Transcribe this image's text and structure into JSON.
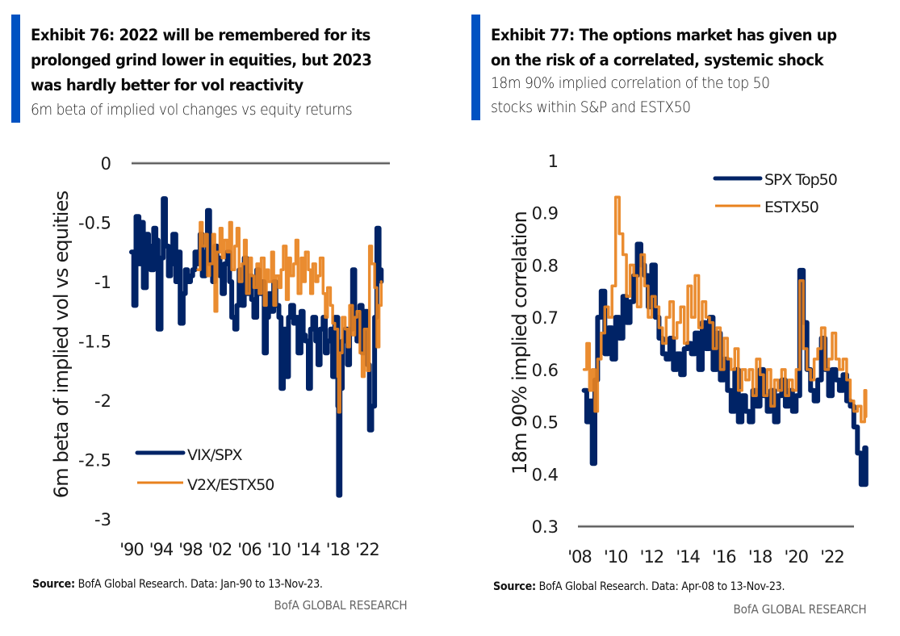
{
  "exhibit76": {
    "title_lines": [
      "Exhibit 76: 2022 will be remembered  for its",
      "prolonged grind lower in equities, but 2023",
      "was hardly better for vol reactivity"
    ],
    "subtitle": "6m beta of implied vol changes vs equity returns",
    "source_label": "Source:",
    "source_text": "BofA Global Research. Data: Jan-90 to 13-Nov-23.",
    "brand": "BofA GLOBAL RESEARCH"
  },
  "exhibit77": {
    "title_lines": [
      "Exhibit 77: The options market has given up",
      "on the risk of a correlated, systemic shock"
    ],
    "subtitle_lines": [
      "18m 90% implied correlation  of the top 50",
      "stocks within  S&P and ESTX50"
    ],
    "source_label": "Source:",
    "source_text": "BofA Global Research.  Data: Apr-08 to 13-Nov-23.",
    "brand": "BofA GLOBAL RESEARCH"
  },
  "colors": {
    "accent_bar": "#0052c2",
    "navy": "#002366",
    "orange": "#e8821e",
    "axis": "#555555"
  },
  "chart_data": [
    {
      "type": "line",
      "title": "6m beta of implied vol changes vs equity returns",
      "xlabel": "",
      "ylabel": "6m beta of implied vol vs equities",
      "ylim": [
        -3,
        0
      ],
      "xlim": [
        1990.0,
        2023.9
      ],
      "yticks": [
        0,
        -0.5,
        -1,
        -1.5,
        -2,
        -2.5,
        -3
      ],
      "ytick_labels": [
        "0",
        "-0.5",
        "-1",
        "-1.5",
        "-2",
        "-2.5",
        "-3"
      ],
      "xticks": [
        1990,
        1994,
        1998,
        2002,
        2006,
        2010,
        2014,
        2018,
        2022
      ],
      "xtick_labels": [
        "'90",
        "'94",
        "'98",
        "'02",
        "'06",
        "'10",
        "'14",
        "'18",
        "'22"
      ],
      "grid": false,
      "legend": "bottom-left",
      "series": [
        {
          "name": "VIX/SPX",
          "color": "#002366",
          "x": [
            1990.0,
            1990.3,
            1990.6,
            1991.0,
            1991.3,
            1991.6,
            1992.0,
            1992.3,
            1992.6,
            1993.0,
            1993.3,
            1993.6,
            1994.0,
            1994.3,
            1994.6,
            1995.0,
            1995.3,
            1995.6,
            1996.0,
            1996.3,
            1996.6,
            1997.0,
            1997.3,
            1997.6,
            1998.0,
            1998.3,
            1998.6,
            1999.0,
            1999.3,
            1999.6,
            2000.0,
            2000.3,
            2000.6,
            2001.0,
            2001.3,
            2001.6,
            2002.0,
            2002.3,
            2002.6,
            2003.0,
            2003.3,
            2003.6,
            2004.0,
            2004.3,
            2004.6,
            2005.0,
            2005.3,
            2005.6,
            2006.0,
            2006.3,
            2006.6,
            2007.0,
            2007.3,
            2007.6,
            2008.0,
            2008.3,
            2008.6,
            2009.0,
            2009.3,
            2009.6,
            2010.0,
            2010.3,
            2010.6,
            2011.0,
            2011.3,
            2011.6,
            2012.0,
            2012.3,
            2012.6,
            2013.0,
            2013.3,
            2013.6,
            2014.0,
            2014.3,
            2014.6,
            2015.0,
            2015.3,
            2015.6,
            2016.0,
            2016.3,
            2016.6,
            2017.0,
            2017.3,
            2017.6,
            2018.0,
            2018.1,
            2018.3,
            2018.6,
            2019.0,
            2019.3,
            2019.6,
            2020.0,
            2020.3,
            2020.6,
            2021.0,
            2021.3,
            2021.6,
            2022.0,
            2022.3,
            2022.6,
            2023.0,
            2023.3,
            2023.6,
            2023.9
          ],
          "y": [
            -0.75,
            -1.2,
            -0.45,
            -0.85,
            -0.5,
            -1.05,
            -0.6,
            -0.7,
            -0.9,
            -0.55,
            -0.65,
            -1.4,
            -0.8,
            -0.3,
            -0.7,
            -0.95,
            -0.85,
            -0.6,
            -1.0,
            -0.75,
            -1.35,
            -1.1,
            -0.9,
            -1.0,
            -0.95,
            -0.9,
            -0.75,
            -0.85,
            -0.6,
            -0.95,
            -0.75,
            -0.4,
            -0.85,
            -1.0,
            -0.7,
            -0.8,
            -0.95,
            -1.1,
            -0.85,
            -0.75,
            -1.0,
            -1.3,
            -1.4,
            -1.2,
            -0.9,
            -1.2,
            -0.8,
            -1.1,
            -0.95,
            -1.15,
            -1.3,
            -0.9,
            -1.1,
            -1.0,
            -1.6,
            -1.3,
            -1.1,
            -1.25,
            -1.0,
            -1.2,
            -1.3,
            -1.9,
            -1.4,
            -1.8,
            -1.3,
            -1.2,
            -1.35,
            -1.3,
            -1.6,
            -1.25,
            -1.45,
            -1.5,
            -1.9,
            -1.4,
            -1.3,
            -1.5,
            -1.7,
            -1.4,
            -1.3,
            -1.6,
            -1.5,
            -1.4,
            -1.8,
            -1.3,
            -2.05,
            -2.8,
            -1.9,
            -1.5,
            -1.4,
            -1.7,
            -1.4,
            -0.9,
            -1.3,
            -1.5,
            -1.2,
            -1.6,
            -1.25,
            -1.7,
            -2.25,
            -2.05,
            -1.3,
            -0.55,
            -0.9,
            -1.0
          ]
        },
        {
          "name": "V2X/ESTX50",
          "color": "#e8821e",
          "x": [
            1999.0,
            1999.3,
            1999.6,
            2000.0,
            2000.3,
            2000.6,
            2001.0,
            2001.3,
            2001.6,
            2002.0,
            2002.3,
            2002.6,
            2003.0,
            2003.3,
            2003.6,
            2004.0,
            2004.3,
            2004.6,
            2005.0,
            2005.3,
            2005.6,
            2006.0,
            2006.3,
            2006.6,
            2007.0,
            2007.3,
            2007.6,
            2008.0,
            2008.3,
            2008.6,
            2009.0,
            2009.3,
            2009.6,
            2010.0,
            2010.3,
            2010.6,
            2011.0,
            2011.3,
            2011.6,
            2012.0,
            2012.3,
            2012.6,
            2013.0,
            2013.3,
            2013.6,
            2014.0,
            2014.3,
            2014.6,
            2015.0,
            2015.3,
            2015.6,
            2016.0,
            2016.3,
            2016.6,
            2017.0,
            2017.3,
            2017.6,
            2018.0,
            2018.1,
            2018.3,
            2018.6,
            2019.0,
            2019.3,
            2019.6,
            2020.0,
            2020.3,
            2020.6,
            2021.0,
            2021.3,
            2021.6,
            2022.0,
            2022.3,
            2022.6,
            2023.0,
            2023.3,
            2023.6,
            2023.9
          ],
          "y": [
            -0.9,
            -0.5,
            -0.7,
            -0.6,
            -0.95,
            -0.85,
            -0.6,
            -1.25,
            -0.75,
            -0.55,
            -0.8,
            -0.65,
            -0.75,
            -0.5,
            -0.9,
            -0.7,
            -0.55,
            -1.0,
            -0.85,
            -0.65,
            -1.1,
            -0.8,
            -0.95,
            -1.05,
            -0.85,
            -1.1,
            -0.8,
            -1.2,
            -0.9,
            -1.0,
            -0.75,
            -1.2,
            -0.95,
            -1.05,
            -0.9,
            -0.7,
            -1.15,
            -0.8,
            -0.95,
            -0.85,
            -0.65,
            -1.1,
            -0.8,
            -1.0,
            -0.75,
            -0.9,
            -1.1,
            -0.85,
            -1.0,
            -0.95,
            -0.8,
            -1.1,
            -1.3,
            -1.05,
            -1.2,
            -1.35,
            -1.4,
            -1.8,
            -2.1,
            -1.6,
            -1.3,
            -1.4,
            -1.55,
            -1.2,
            -1.45,
            -1.3,
            -1.25,
            -1.6,
            -1.8,
            -1.4,
            -1.75,
            -0.7,
            -0.85,
            -1.05,
            -1.55,
            -1.2,
            -1.0
          ]
        }
      ]
    },
    {
      "type": "line",
      "title": "18m 90% implied correlation of the top 50 stocks within S&P and ESTX50",
      "xlabel": "",
      "ylabel": "18m 90% implied correlation",
      "ylim": [
        0.3,
        1
      ],
      "xlim": [
        2007.9,
        2023.9
      ],
      "yticks": [
        1,
        0.9,
        0.8,
        0.7,
        0.6,
        0.5,
        0.4,
        0.3
      ],
      "ytick_labels": [
        "1",
        "0.9",
        "0.8",
        "0.7",
        "0.6",
        "0.5",
        "0.4",
        "0.3"
      ],
      "xticks": [
        2008,
        2010,
        2012,
        2014,
        2016,
        2018,
        2020,
        2022
      ],
      "xtick_labels": [
        "'08",
        "'10",
        "'12",
        "'14",
        "'16",
        "'18",
        "'20",
        "'22"
      ],
      "grid": false,
      "legend": "top-right",
      "series": [
        {
          "name": "SPX Top50",
          "color": "#002366",
          "x": [
            2008.25,
            2008.4,
            2008.55,
            2008.7,
            2008.85,
            2009.0,
            2009.2,
            2009.4,
            2009.6,
            2009.8,
            2010.0,
            2010.2,
            2010.4,
            2010.6,
            2010.8,
            2011.0,
            2011.2,
            2011.4,
            2011.6,
            2011.8,
            2012.0,
            2012.2,
            2012.4,
            2012.6,
            2012.8,
            2013.0,
            2013.2,
            2013.4,
            2013.6,
            2013.8,
            2014.0,
            2014.2,
            2014.4,
            2014.6,
            2014.8,
            2015.0,
            2015.2,
            2015.4,
            2015.6,
            2015.8,
            2016.0,
            2016.2,
            2016.4,
            2016.6,
            2016.8,
            2017.0,
            2017.2,
            2017.4,
            2017.6,
            2017.8,
            2018.0,
            2018.2,
            2018.4,
            2018.6,
            2018.8,
            2019.0,
            2019.2,
            2019.4,
            2019.6,
            2019.8,
            2020.0,
            2020.2,
            2020.4,
            2020.6,
            2020.8,
            2021.0,
            2021.2,
            2021.4,
            2021.6,
            2021.8,
            2022.0,
            2022.2,
            2022.4,
            2022.6,
            2022.8,
            2023.0,
            2023.2,
            2023.4,
            2023.6,
            2023.8,
            2023.87
          ],
          "y": [
            0.56,
            0.5,
            0.54,
            0.42,
            0.58,
            0.7,
            0.75,
            0.63,
            0.68,
            0.62,
            0.7,
            0.66,
            0.74,
            0.69,
            0.73,
            0.78,
            0.84,
            0.8,
            0.78,
            0.72,
            0.8,
            0.7,
            0.66,
            0.63,
            0.62,
            0.66,
            0.6,
            0.63,
            0.59,
            0.64,
            0.65,
            0.63,
            0.67,
            0.6,
            0.69,
            0.64,
            0.7,
            0.6,
            0.67,
            0.58,
            0.62,
            0.56,
            0.52,
            0.6,
            0.5,
            0.55,
            0.52,
            0.5,
            0.56,
            0.53,
            0.6,
            0.55,
            0.52,
            0.56,
            0.5,
            0.55,
            0.58,
            0.53,
            0.56,
            0.52,
            0.55,
            0.79,
            0.69,
            0.6,
            0.56,
            0.54,
            0.58,
            0.66,
            0.6,
            0.55,
            0.6,
            0.58,
            0.56,
            0.59,
            0.54,
            0.53,
            0.49,
            0.44,
            0.38,
            0.45,
            0.38
          ]
        },
        {
          "name": "ESTX50",
          "color": "#e8821e",
          "x": [
            2008.25,
            2008.4,
            2008.55,
            2008.7,
            2008.85,
            2009.0,
            2009.2,
            2009.4,
            2009.6,
            2009.8,
            2010.0,
            2010.2,
            2010.4,
            2010.6,
            2010.8,
            2011.0,
            2011.2,
            2011.4,
            2011.6,
            2011.8,
            2012.0,
            2012.2,
            2012.4,
            2012.6,
            2012.8,
            2013.0,
            2013.2,
            2013.4,
            2013.6,
            2013.8,
            2014.0,
            2014.2,
            2014.4,
            2014.6,
            2014.8,
            2015.0,
            2015.2,
            2015.4,
            2015.6,
            2015.8,
            2016.0,
            2016.2,
            2016.4,
            2016.6,
            2016.8,
            2017.0,
            2017.2,
            2017.4,
            2017.6,
            2017.8,
            2018.0,
            2018.2,
            2018.4,
            2018.6,
            2018.8,
            2019.0,
            2019.2,
            2019.4,
            2019.6,
            2019.8,
            2020.0,
            2020.2,
            2020.4,
            2020.6,
            2020.8,
            2021.0,
            2021.2,
            2021.4,
            2021.6,
            2021.8,
            2022.0,
            2022.2,
            2022.4,
            2022.6,
            2022.8,
            2023.0,
            2023.2,
            2023.4,
            2023.6,
            2023.8,
            2023.87
          ],
          "y": [
            0.6,
            0.65,
            0.56,
            0.6,
            0.52,
            0.62,
            0.67,
            0.72,
            0.7,
            0.76,
            0.93,
            0.86,
            0.82,
            0.74,
            0.8,
            0.78,
            0.72,
            0.82,
            0.76,
            0.7,
            0.74,
            0.72,
            0.68,
            0.65,
            0.7,
            0.73,
            0.66,
            0.69,
            0.72,
            0.65,
            0.76,
            0.7,
            0.78,
            0.68,
            0.73,
            0.7,
            0.69,
            0.64,
            0.68,
            0.6,
            0.66,
            0.62,
            0.6,
            0.64,
            0.56,
            0.6,
            0.58,
            0.6,
            0.55,
            0.62,
            0.59,
            0.55,
            0.6,
            0.53,
            0.58,
            0.56,
            0.6,
            0.55,
            0.58,
            0.56,
            0.6,
            0.77,
            0.64,
            0.6,
            0.58,
            0.62,
            0.64,
            0.68,
            0.6,
            0.62,
            0.67,
            0.62,
            0.6,
            0.62,
            0.58,
            0.54,
            0.52,
            0.53,
            0.5,
            0.56,
            0.51
          ]
        }
      ]
    }
  ]
}
